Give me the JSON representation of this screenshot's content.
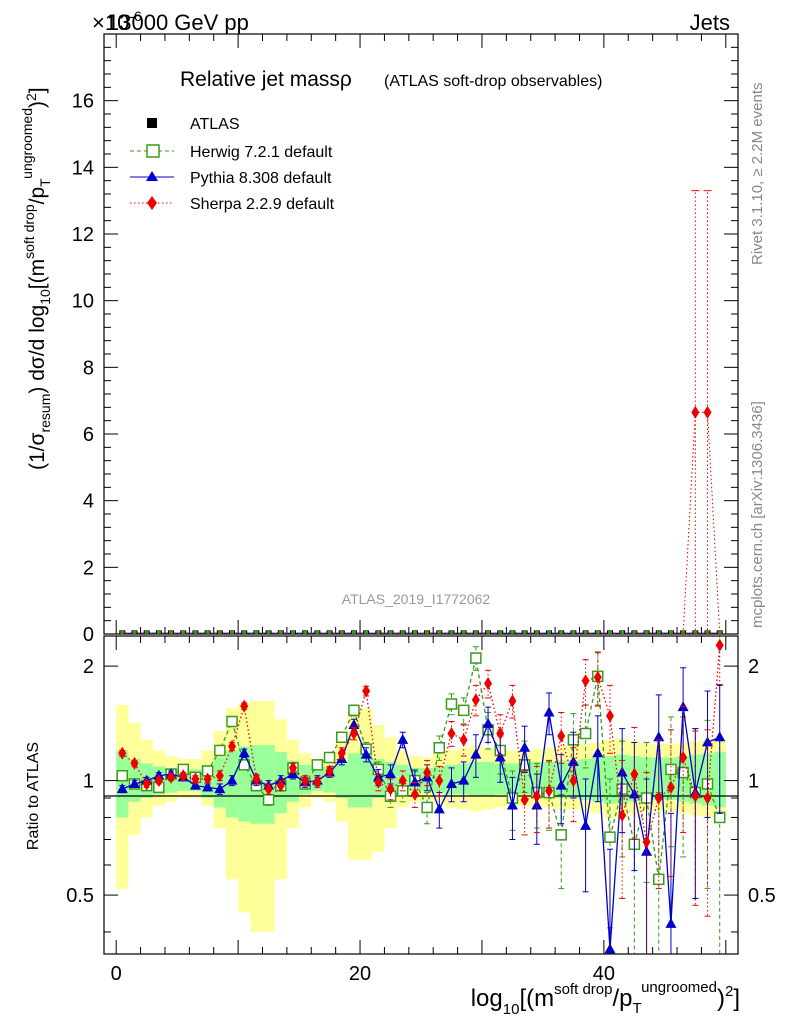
{
  "header": {
    "energy_label": "13000 GeV pp",
    "exponent_label": "×10",
    "exponent_power": "-6",
    "process_label": "Jets"
  },
  "title": {
    "main": "Relative jet massρ",
    "sub": "(ATLAS soft-drop observables)"
  },
  "side_labels": {
    "rivet": "Rivet 3.1.10, ≥ 2.2M events",
    "site": "mcplots.cern.ch [arXiv:1306.3436]"
  },
  "watermark": "ATLAS_2019_I1772062",
  "legend": [
    {
      "key": "atlas",
      "label": "ATLAS",
      "color": "#000000",
      "marker": "square-filled"
    },
    {
      "key": "herwig",
      "label": "Herwig 7.2.1 default",
      "color": "#3a9a1a",
      "marker": "square-open",
      "dash": "dashed"
    },
    {
      "key": "pythia",
      "label": "Pythia 8.308 default",
      "color": "#0000cc",
      "marker": "triangle",
      "dash": "solid"
    },
    {
      "key": "sherpa",
      "label": "Sherpa 2.2.9 default",
      "color": "#ee0000",
      "marker": "diamond",
      "dash": "dotted"
    }
  ],
  "axes": {
    "ylabel_main": "(1/σresum) dσ/d log10[(m soft drop / pT ungroomed)2]",
    "ylabel_ratio": "Ratio to ATLAS",
    "xlabel": "log10[(m soft drop / pT ungroomed)2]",
    "main_ticks": [
      "0",
      "2",
      "4",
      "6",
      "8",
      "10",
      "12",
      "14",
      "16"
    ],
    "ratio_ticks": [
      "0.5",
      "1",
      "2"
    ],
    "x_ticks": [
      "0",
      "20",
      "40"
    ]
  },
  "chart_data": {
    "type": "line",
    "title": "Relative jet massρ (ATLAS soft-drop observables)",
    "x": [
      0.5,
      1.5,
      2.5,
      3.5,
      4.5,
      5.5,
      6.5,
      7.5,
      8.5,
      9.5,
      10.5,
      11.5,
      12.5,
      13.5,
      14.5,
      15.5,
      16.5,
      17.5,
      18.5,
      19.5,
      20.5,
      21.5,
      22.5,
      23.5,
      24.5,
      25.5,
      26.5,
      27.5,
      28.5,
      29.5,
      30.5,
      31.5,
      32.5,
      33.5,
      34.5,
      35.5,
      36.5,
      37.5,
      38.5,
      39.5,
      40.5,
      41.5,
      42.5,
      43.5,
      44.5,
      45.5,
      46.5,
      47.5,
      48.5,
      49.5
    ],
    "xlim": [
      -1,
      51
    ],
    "main_ylim": [
      0,
      18
    ],
    "ratio_ylim": [
      0.35,
      2.4
    ],
    "main_series": [
      {
        "name": "ATLAS",
        "values": [
          0.02,
          0.02,
          0.02,
          0.02,
          0.02,
          0.02,
          0.02,
          0.02,
          0.02,
          0.02,
          0.02,
          0.02,
          0.02,
          0.02,
          0.02,
          0.02,
          0.02,
          0.02,
          0.02,
          0.02,
          0.02,
          0.02,
          0.02,
          0.02,
          0.02,
          0.02,
          0.02,
          0.02,
          0.02,
          0.02,
          0.02,
          0.02,
          0.02,
          0.02,
          0.02,
          0.02,
          0.02,
          0.02,
          0.02,
          0.02,
          0.02,
          0.02,
          0.02,
          0.02,
          0.02,
          0.02,
          0.02,
          0.02,
          0.02,
          0.02
        ]
      },
      {
        "name": "Sherpa 2.2.9 default",
        "values_nonzero": {
          "47.5": 6.65,
          "48.5": 6.65
        },
        "errors_nonzero": {
          "47.5": 6.65,
          "48.5": 6.65
        }
      }
    ],
    "ratio_band_inner": [
      [
        0.8,
        1.2
      ],
      [
        0.88,
        1.14
      ],
      [
        0.9,
        1.11
      ],
      [
        0.92,
        1.09
      ],
      [
        0.93,
        1.08
      ],
      [
        0.94,
        1.07
      ],
      [
        0.94,
        1.07
      ],
      [
        0.9,
        1.1
      ],
      [
        0.85,
        1.15
      ],
      [
        0.8,
        1.2
      ],
      [
        0.78,
        1.23
      ],
      [
        0.77,
        1.24
      ],
      [
        0.77,
        1.24
      ],
      [
        0.82,
        1.19
      ],
      [
        0.88,
        1.13
      ],
      [
        0.92,
        1.1
      ],
      [
        0.94,
        1.08
      ],
      [
        0.93,
        1.09
      ],
      [
        0.9,
        1.12
      ],
      [
        0.85,
        1.18
      ],
      [
        0.85,
        1.2
      ],
      [
        0.9,
        1.14
      ],
      [
        0.92,
        1.12
      ],
      [
        0.93,
        1.1
      ],
      [
        0.94,
        1.08
      ],
      [
        0.94,
        1.08
      ],
      [
        0.93,
        1.09
      ],
      [
        0.92,
        1.1
      ],
      [
        0.92,
        1.11
      ],
      [
        0.91,
        1.12
      ],
      [
        0.91,
        1.12
      ],
      [
        0.92,
        1.11
      ],
      [
        0.92,
        1.11
      ],
      [
        0.92,
        1.11
      ],
      [
        0.91,
        1.12
      ],
      [
        0.91,
        1.12
      ],
      [
        0.9,
        1.13
      ],
      [
        0.9,
        1.13
      ],
      [
        0.89,
        1.14
      ],
      [
        0.88,
        1.15
      ],
      [
        0.87,
        1.16
      ],
      [
        0.87,
        1.17
      ],
      [
        0.88,
        1.16
      ],
      [
        0.89,
        1.15
      ],
      [
        0.89,
        1.15
      ],
      [
        0.89,
        1.15
      ],
      [
        0.88,
        1.16
      ],
      [
        0.87,
        1.17
      ],
      [
        0.86,
        1.18
      ],
      [
        0.85,
        1.19
      ]
    ],
    "ratio_band_outer": [
      [
        0.52,
        1.58
      ],
      [
        0.72,
        1.42
      ],
      [
        0.8,
        1.28
      ],
      [
        0.86,
        1.2
      ],
      [
        0.88,
        1.16
      ],
      [
        0.9,
        1.14
      ],
      [
        0.9,
        1.14
      ],
      [
        0.86,
        1.2
      ],
      [
        0.75,
        1.35
      ],
      [
        0.55,
        1.55
      ],
      [
        0.45,
        1.6
      ],
      [
        0.4,
        1.62
      ],
      [
        0.4,
        1.62
      ],
      [
        0.55,
        1.45
      ],
      [
        0.75,
        1.28
      ],
      [
        0.85,
        1.18
      ],
      [
        0.9,
        1.14
      ],
      [
        0.88,
        1.18
      ],
      [
        0.78,
        1.3
      ],
      [
        0.62,
        1.52
      ],
      [
        0.62,
        1.55
      ],
      [
        0.65,
        1.4
      ],
      [
        0.75,
        1.3
      ],
      [
        0.85,
        1.2
      ],
      [
        0.88,
        1.16
      ],
      [
        0.89,
        1.15
      ],
      [
        0.87,
        1.18
      ],
      [
        0.85,
        1.2
      ],
      [
        0.84,
        1.22
      ],
      [
        0.83,
        1.24
      ],
      [
        0.84,
        1.22
      ],
      [
        0.85,
        1.21
      ],
      [
        0.86,
        1.2
      ],
      [
        0.86,
        1.2
      ],
      [
        0.85,
        1.21
      ],
      [
        0.85,
        1.22
      ],
      [
        0.84,
        1.23
      ],
      [
        0.84,
        1.24
      ],
      [
        0.83,
        1.25
      ],
      [
        0.82,
        1.26
      ],
      [
        0.8,
        1.28
      ],
      [
        0.8,
        1.29
      ],
      [
        0.82,
        1.27
      ],
      [
        0.83,
        1.25
      ],
      [
        0.83,
        1.25
      ],
      [
        0.83,
        1.25
      ],
      [
        0.82,
        1.26
      ],
      [
        0.81,
        1.27
      ],
      [
        0.8,
        1.28
      ],
      [
        0.8,
        1.29
      ]
    ],
    "ratio_series": [
      {
        "name": "Herwig 7.2.1 default",
        "values": [
          1.03,
          0.98,
          0.97,
          0.96,
          1.04,
          1.07,
          1.02,
          1.06,
          1.2,
          1.43,
          1.1,
          0.97,
          0.89,
          0.97,
          1.08,
          0.98,
          1.1,
          1.15,
          1.3,
          1.53,
          1.21,
          1.07,
          0.91,
          0.94,
          1.0,
          0.85,
          1.22,
          1.59,
          1.53,
          2.1,
          1.36,
          1.2,
          0.9,
          1.1,
          0.93,
          0.93,
          0.72,
          1.28,
          1.33,
          1.88,
          0.71,
          0.95,
          0.68,
          0.9,
          0.55,
          1.07,
          1.05,
          0.93,
          0.98,
          0.8
        ],
        "errors": [
          0.02,
          0.02,
          0.02,
          0.02,
          0.02,
          0.02,
          0.02,
          0.02,
          0.03,
          0.03,
          0.03,
          0.03,
          0.03,
          0.03,
          0.03,
          0.03,
          0.03,
          0.03,
          0.04,
          0.05,
          0.05,
          0.05,
          0.06,
          0.06,
          0.07,
          0.08,
          0.09,
          0.1,
          0.12,
          0.15,
          0.15,
          0.16,
          0.16,
          0.17,
          0.18,
          0.19,
          0.2,
          0.22,
          0.25,
          0.3,
          0.3,
          0.32,
          0.34,
          0.36,
          0.38,
          0.4,
          0.42,
          0.44,
          0.46,
          0.48
        ]
      },
      {
        "name": "Pythia 8.308 default",
        "values": [
          0.95,
          0.98,
          1.0,
          1.03,
          1.04,
          1.02,
          0.97,
          0.96,
          0.95,
          1.0,
          1.18,
          1.0,
          0.97,
          1.0,
          1.04,
          0.99,
          1.0,
          1.05,
          1.14,
          1.4,
          1.17,
          1.02,
          1.04,
          1.28,
          0.99,
          1.02,
          0.84,
          0.98,
          1.0,
          1.17,
          1.41,
          1.15,
          0.86,
          1.22,
          0.86,
          1.51,
          0.97,
          1.12,
          0.76,
          1.18,
          0.36,
          1.05,
          0.92,
          0.65,
          1.3,
          0.42,
          1.56,
          0.93,
          1.26,
          1.3
        ],
        "errors": [
          0.02,
          0.02,
          0.02,
          0.02,
          0.02,
          0.02,
          0.02,
          0.02,
          0.03,
          0.03,
          0.03,
          0.03,
          0.03,
          0.03,
          0.03,
          0.03,
          0.03,
          0.03,
          0.04,
          0.05,
          0.05,
          0.05,
          0.06,
          0.06,
          0.07,
          0.08,
          0.09,
          0.1,
          0.12,
          0.15,
          0.15,
          0.16,
          0.16,
          0.17,
          0.18,
          0.19,
          0.2,
          0.22,
          0.25,
          0.3,
          0.3,
          0.32,
          0.34,
          0.36,
          0.38,
          0.4,
          0.42,
          0.44,
          0.46,
          0.48
        ]
      },
      {
        "name": "Sherpa 2.2.9 default",
        "values": [
          1.18,
          1.11,
          0.98,
          1.0,
          1.02,
          1.03,
          1.01,
          1.01,
          1.03,
          1.23,
          1.57,
          1.01,
          0.95,
          0.97,
          1.08,
          1.0,
          0.99,
          1.06,
          1.18,
          1.33,
          1.72,
          0.99,
          0.95,
          1.0,
          0.92,
          1.05,
          1.0,
          1.33,
          1.28,
          1.63,
          1.8,
          1.33,
          1.62,
          0.89,
          0.91,
          0.94,
          1.31,
          1.0,
          1.83,
          1.87,
          1.48,
          0.81,
          1.04,
          0.69,
          0.9,
          0.96,
          1.15,
          0.91,
          0.9,
          2.27
        ],
        "errors": [
          0.02,
          0.02,
          0.02,
          0.02,
          0.02,
          0.02,
          0.02,
          0.02,
          0.03,
          0.03,
          0.03,
          0.03,
          0.03,
          0.03,
          0.03,
          0.03,
          0.03,
          0.03,
          0.04,
          0.05,
          0.05,
          0.05,
          0.06,
          0.06,
          0.07,
          0.08,
          0.09,
          0.1,
          0.12,
          0.15,
          0.15,
          0.16,
          0.16,
          0.17,
          0.18,
          0.19,
          0.2,
          0.22,
          0.25,
          0.3,
          0.3,
          0.32,
          0.34,
          0.36,
          0.38,
          0.4,
          0.42,
          0.44,
          0.46,
          0.48
        ]
      }
    ]
  }
}
